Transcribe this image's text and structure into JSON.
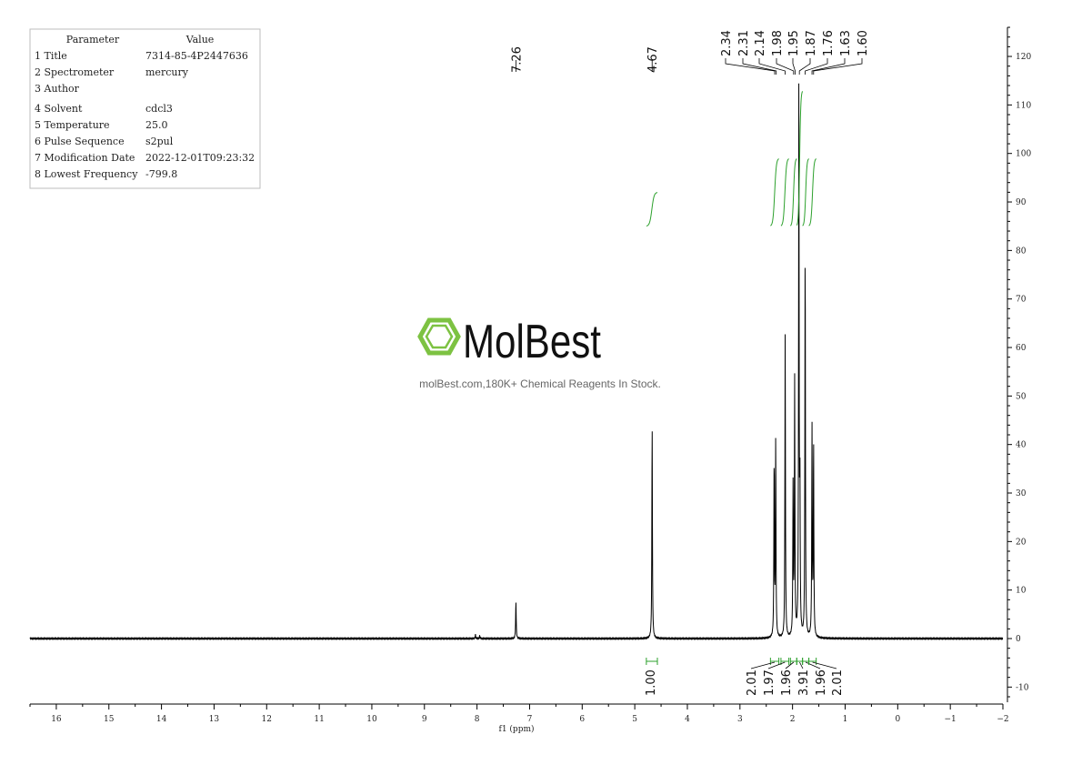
{
  "parameters_table": {
    "header_param": "Parameter",
    "header_value": "Value",
    "rows": [
      {
        "label": "1 Title",
        "value": "7314-85-4P2447636"
      },
      {
        "label": "2 Spectrometer",
        "value": "mercury"
      },
      {
        "label": "3 Author",
        "value": ""
      },
      {
        "label": "4 Solvent",
        "value": "cdcl3"
      },
      {
        "label": "5 Temperature",
        "value": "25.0"
      },
      {
        "label": "6 Pulse Sequence",
        "value": "s2pul"
      },
      {
        "label": "7 Modification Date",
        "value": "2022-12-01T09:23:32"
      },
      {
        "label": "8 Lowest Frequency",
        "value": "-799.8"
      }
    ]
  },
  "watermark": {
    "brand": "MolBest",
    "tagline": "molBest.com,180K+ Chemical Reagents In Stock.",
    "brand_color": "#7dc242"
  },
  "colors": {
    "spectrum": "#000000",
    "integral": "#2ca02c"
  },
  "chart_data": {
    "type": "line",
    "title": "",
    "xlabel": "f1 (ppm)",
    "ylabel": "",
    "xlim": [
      16.5,
      -2
    ],
    "ylim": [
      -13,
      127
    ],
    "x_ticks": [
      16,
      15,
      14,
      13,
      12,
      11,
      10,
      9,
      8,
      7,
      6,
      5,
      4,
      3,
      2,
      1,
      0,
      -1,
      -2
    ],
    "x_tick_labels": [
      "16",
      "15",
      "14",
      "13",
      "12",
      "11",
      "10",
      "9",
      "8",
      "7",
      "6",
      "5",
      "4",
      "3",
      "2",
      "1",
      "0",
      "−1",
      "−2"
    ],
    "y_ticks": [
      120,
      110,
      100,
      90,
      80,
      70,
      60,
      50,
      40,
      30,
      20,
      10,
      0,
      -10
    ],
    "y_tick_labels": [
      "120",
      "110",
      "100",
      "90",
      "80",
      "70",
      "60",
      "50",
      "40",
      "30",
      "20",
      "10",
      "0",
      "-10"
    ],
    "peaks": [
      {
        "ppm": 8.03,
        "height": 0.8
      },
      {
        "ppm": 7.95,
        "height": 0.6
      },
      {
        "ppm": 7.26,
        "height": 7.8
      },
      {
        "ppm": 4.67,
        "height": 44.5
      },
      {
        "ppm": 2.35,
        "height": 37
      },
      {
        "ppm": 2.32,
        "height": 41
      },
      {
        "ppm": 2.14,
        "height": 62.8
      },
      {
        "ppm": 1.99,
        "height": 31
      },
      {
        "ppm": 1.96,
        "height": 52.5
      },
      {
        "ppm": 1.88,
        "height": 112.5
      },
      {
        "ppm": 1.86,
        "height": 30
      },
      {
        "ppm": 1.76,
        "height": 81.5
      },
      {
        "ppm": 1.63,
        "height": 43
      },
      {
        "ppm": 1.6,
        "height": 40
      }
    ],
    "peak_labels": {
      "single": [
        "7.26",
        "4.67"
      ],
      "group": [
        "2.34",
        "2.31",
        "2.14",
        "1.98",
        "1.95",
        "1.87",
        "1.76",
        "1.63",
        "1.60"
      ]
    },
    "integrals": [
      {
        "from": 4.78,
        "to": 4.57,
        "value": "1.00"
      },
      {
        "from": 2.42,
        "to": 2.26,
        "value": "2.01"
      },
      {
        "from": 2.22,
        "to": 2.07,
        "value": "1.97"
      },
      {
        "from": 2.04,
        "to": 1.92,
        "value": "1.96"
      },
      {
        "from": 1.92,
        "to": 1.81,
        "value": "3.91"
      },
      {
        "from": 1.81,
        "to": 1.69,
        "value": "1.96"
      },
      {
        "from": 1.69,
        "to": 1.55,
        "value": "2.01"
      }
    ]
  }
}
